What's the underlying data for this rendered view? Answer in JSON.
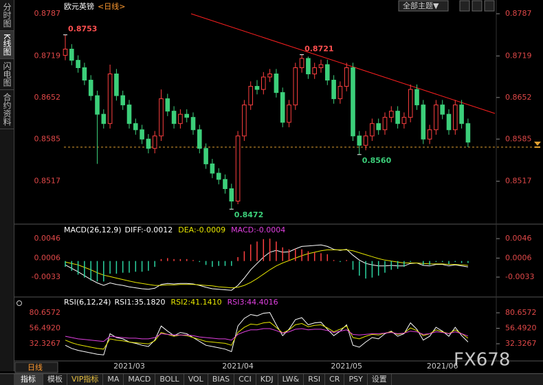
{
  "header": {
    "title": "欧元英镑",
    "period": "<日线>",
    "theme_button": "全部主题▼"
  },
  "sidebar": [
    "分时图",
    "K线图",
    "闪电图",
    "合约资料"
  ],
  "period_button": "日线",
  "watermark": "FX678",
  "toolbar": [
    "指标",
    "模板",
    "VIP指标",
    "MA",
    "MACD",
    "BOLL",
    "VOL",
    "BIAS",
    "CCI",
    "KDJ",
    "LW&",
    "RSI",
    "CR",
    "PSY",
    "设置"
  ],
  "chart_data": [
    {
      "type": "candlestick",
      "up_color": "#ff4040",
      "down_color": "#3ccf7a",
      "categories": [
        null,
        null,
        null,
        null,
        null,
        null,
        null,
        null,
        null,
        null,
        "2021/03",
        null,
        null,
        null,
        null,
        null,
        null,
        null,
        null,
        null,
        null,
        null,
        null,
        null,
        null,
        null,
        null,
        "2021/04",
        null,
        null,
        null,
        null,
        null,
        null,
        null,
        null,
        null,
        null,
        null,
        null,
        null,
        null,
        null,
        null,
        "2021/05",
        null,
        null,
        null,
        null,
        null,
        null,
        null,
        null,
        null,
        null,
        null,
        null,
        null,
        null,
        "2021/06",
        null,
        null,
        null,
        null
      ],
      "open": [
        0.872,
        0.873,
        0.8712,
        0.87,
        0.868,
        0.8655,
        0.8625,
        0.861,
        0.869,
        0.8655,
        0.864,
        0.861,
        0.86,
        0.8585,
        0.857,
        0.859,
        0.865,
        0.863,
        0.861,
        0.8625,
        0.862,
        0.86,
        0.857,
        0.8545,
        0.853,
        0.852,
        0.8505,
        0.8485,
        0.859,
        0.864,
        0.867,
        0.8665,
        0.8685,
        0.869,
        0.866,
        0.8612,
        0.864,
        0.87,
        0.8715,
        0.869,
        0.87,
        0.8705,
        0.868,
        0.865,
        0.867,
        0.87,
        0.859,
        0.8575,
        0.859,
        0.861,
        0.86,
        0.862,
        0.863,
        0.861,
        0.862,
        0.8665,
        0.864,
        0.8585,
        0.86,
        0.864,
        0.8625,
        0.86,
        0.864,
        0.861
      ],
      "high": [
        0.8753,
        0.8738,
        0.872,
        0.8708,
        0.8688,
        0.8663,
        0.8633,
        0.8705,
        0.8698,
        0.8663,
        0.8648,
        0.8618,
        0.8608,
        0.8593,
        0.8598,
        0.8665,
        0.8658,
        0.8638,
        0.8633,
        0.8633,
        0.8628,
        0.8608,
        0.8578,
        0.8553,
        0.8538,
        0.8528,
        0.8513,
        0.8598,
        0.8648,
        0.8678,
        0.868,
        0.8693,
        0.8698,
        0.8698,
        0.8668,
        0.8648,
        0.8708,
        0.8721,
        0.8718,
        0.8708,
        0.8713,
        0.8713,
        0.8688,
        0.8678,
        0.8708,
        0.8708,
        0.8598,
        0.8598,
        0.8618,
        0.8618,
        0.8628,
        0.8638,
        0.8638,
        0.8628,
        0.8673,
        0.8673,
        0.8648,
        0.8608,
        0.8648,
        0.8648,
        0.8633,
        0.8648,
        0.8648,
        0.8618
      ],
      "low": [
        0.8712,
        0.8704,
        0.8692,
        0.8672,
        0.8647,
        0.8545,
        0.8602,
        0.8602,
        0.8647,
        0.8632,
        0.8602,
        0.8592,
        0.8577,
        0.8562,
        0.8562,
        0.8582,
        0.8622,
        0.8602,
        0.8602,
        0.8612,
        0.8592,
        0.8562,
        0.8537,
        0.8522,
        0.8512,
        0.8497,
        0.8472,
        0.848,
        0.8582,
        0.8632,
        0.8657,
        0.8657,
        0.8677,
        0.8652,
        0.8604,
        0.8604,
        0.8632,
        0.8692,
        0.8682,
        0.8682,
        0.8692,
        0.8672,
        0.8642,
        0.8642,
        0.8662,
        0.8582,
        0.856,
        0.8567,
        0.8582,
        0.8592,
        0.8592,
        0.8612,
        0.8602,
        0.8602,
        0.8612,
        0.8632,
        0.8577,
        0.8577,
        0.8592,
        0.8617,
        0.8592,
        0.8592,
        0.8602,
        0.8572
      ],
      "close": [
        0.873,
        0.8712,
        0.87,
        0.868,
        0.8655,
        0.8625,
        0.861,
        0.869,
        0.8655,
        0.864,
        0.861,
        0.86,
        0.8585,
        0.857,
        0.859,
        0.865,
        0.863,
        0.861,
        0.8625,
        0.862,
        0.86,
        0.857,
        0.8545,
        0.853,
        0.852,
        0.8505,
        0.8485,
        0.859,
        0.864,
        0.867,
        0.8665,
        0.8685,
        0.869,
        0.866,
        0.8612,
        0.864,
        0.87,
        0.8715,
        0.869,
        0.87,
        0.8705,
        0.868,
        0.865,
        0.867,
        0.87,
        0.859,
        0.8575,
        0.859,
        0.861,
        0.86,
        0.862,
        0.863,
        0.861,
        0.862,
        0.8665,
        0.864,
        0.8585,
        0.86,
        0.864,
        0.8625,
        0.86,
        0.864,
        0.861,
        0.858
      ],
      "annotations": [
        0.8753,
        0.8721,
        {
          "value": 0.856,
          "label": "0.8560"
        },
        0.8472
      ],
      "ylim": [
        0.8449,
        0.8787
      ],
      "yticks": [
        0.8517,
        0.8585,
        0.8652,
        0.8719,
        0.8787
      ]
    },
    {
      "type": "macd",
      "title": "MACD(26,12,9)",
      "series": [
        {
          "name": "DIFF:-0.0012",
          "color": "#ffffff",
          "style": "line",
          "values": [
            -0.0008,
            -0.0015,
            -0.0022,
            -0.003,
            -0.0038,
            -0.0045,
            -0.005,
            -0.0045,
            -0.0048,
            -0.005,
            -0.0053,
            -0.0055,
            -0.0057,
            -0.0058,
            -0.0056,
            -0.0048,
            -0.0046,
            -0.0047,
            -0.0046,
            -0.0046,
            -0.0047,
            -0.005,
            -0.0054,
            -0.0057,
            -0.0058,
            -0.0059,
            -0.006,
            -0.005,
            -0.0035,
            -0.0018,
            -0.0005,
            0.0008,
            0.0018,
            0.0022,
            0.0018,
            0.0019,
            0.0025,
            0.003,
            0.0031,
            0.0032,
            0.0033,
            0.003,
            0.0024,
            0.0022,
            0.0024,
            0.0012,
            0.0002,
            -0.0005,
            -0.0008,
            -0.001,
            -0.001,
            -0.0009,
            -0.001,
            -0.001,
            -0.0005,
            -0.0004,
            -0.0009,
            -0.001,
            -0.0007,
            -0.0007,
            -0.001,
            -0.0008,
            -0.001,
            -0.0012
          ]
        },
        {
          "name": "DEA:-0.0009",
          "color": "#e6e600",
          "style": "line",
          "values": [
            -0.0002,
            -0.0005,
            -0.0008,
            -0.0013,
            -0.0018,
            -0.0024,
            -0.0029,
            -0.0032,
            -0.0035,
            -0.0038,
            -0.0041,
            -0.0044,
            -0.0046,
            -0.0048,
            -0.005,
            -0.005,
            -0.0049,
            -0.0049,
            -0.0048,
            -0.0048,
            -0.0048,
            -0.0049,
            -0.005,
            -0.0051,
            -0.0053,
            -0.0054,
            -0.0055,
            -0.0054,
            -0.005,
            -0.0044,
            -0.0036,
            -0.0027,
            -0.0018,
            -0.001,
            -0.0004,
            0.0001,
            0.0006,
            0.0011,
            0.0015,
            0.0018,
            0.0021,
            0.0023,
            0.0023,
            0.0023,
            0.0023,
            0.0021,
            0.0017,
            0.0013,
            0.0009,
            0.0005,
            0.0002,
            0,
            -0.0002,
            -0.0004,
            -0.0004,
            -0.0004,
            -0.0005,
            -0.0006,
            -0.0006,
            -0.0006,
            -0.0007,
            -0.0007,
            -0.0008,
            -0.0009
          ]
        },
        {
          "name": "MACD:-0.0004",
          "color": "#e040e0",
          "style": "bar",
          "up_color": "#ff4040",
          "down_color": "#2bd4a0",
          "values": [
            -0.0012,
            -0.002,
            -0.0028,
            -0.0034,
            -0.004,
            -0.0042,
            -0.0042,
            -0.0026,
            -0.0026,
            -0.0024,
            -0.0024,
            -0.0022,
            -0.0022,
            -0.002,
            -0.0012,
            0.0004,
            0.0006,
            0.0004,
            0.0004,
            0.0004,
            0.0002,
            -0.0002,
            -0.0008,
            -0.0012,
            -0.001,
            -0.001,
            -0.001,
            0.0008,
            0.002,
            0.0034,
            0.004,
            0.0045,
            0.0046,
            0.004,
            0.0028,
            0.0024,
            0.0025,
            0.0024,
            0.002,
            0.0018,
            0.0016,
            0.0014,
            0.0002,
            -0.0002,
            0.0002,
            -0.0018,
            -0.003,
            -0.0036,
            -0.0034,
            -0.003,
            -0.0024,
            -0.0018,
            -0.0016,
            -0.0012,
            -0.0002,
            0,
            -0.0008,
            -0.0008,
            -0.0002,
            -0.0002,
            -0.0006,
            -0.0002,
            -0.0004,
            -0.0004
          ]
        }
      ],
      "ylim": [
        -0.0064,
        0.0056
      ],
      "yticks": [
        -0.0033,
        0.0006,
        0.0046
      ]
    },
    {
      "type": "line",
      "title": "RSI(6,12,24)",
      "series": [
        {
          "name": "RSI1:35.1820",
          "color": "#ffffff",
          "values": [
            30,
            25,
            22,
            20,
            18,
            16,
            15,
            48,
            42,
            40,
            35,
            33,
            30,
            28,
            38,
            60,
            52,
            45,
            50,
            48,
            42,
            36,
            30,
            28,
            26,
            24,
            20,
            60,
            72,
            78,
            76,
            80,
            81,
            62,
            45,
            55,
            70,
            73,
            62,
            65,
            66,
            55,
            45,
            52,
            62,
            30,
            27,
            35,
            42,
            40,
            48,
            52,
            44,
            48,
            65,
            55,
            38,
            44,
            58,
            52,
            44,
            58,
            45,
            35.182
          ]
        },
        {
          "name": "RSI2:41.1410",
          "color": "#e6e600",
          "values": [
            38,
            34,
            31,
            29,
            27,
            25,
            24,
            40,
            38,
            37,
            35,
            34,
            33,
            32,
            37,
            50,
            47,
            44,
            46,
            45,
            42,
            39,
            36,
            35,
            34,
            33,
            30,
            50,
            58,
            63,
            62,
            65,
            66,
            58,
            49,
            54,
            62,
            64,
            59,
            61,
            62,
            57,
            51,
            55,
            60,
            42,
            40,
            44,
            47,
            46,
            49,
            51,
            47,
            49,
            57,
            53,
            45,
            48,
            54,
            51,
            48,
            54,
            48,
            41.141
          ]
        },
        {
          "name": "RSI3:44.4016",
          "color": "#e040e0",
          "values": [
            44,
            42,
            40,
            39,
            38,
            37,
            36,
            44,
            43,
            42,
            41,
            41,
            40,
            40,
            42,
            48,
            47,
            46,
            46,
            46,
            45,
            43,
            42,
            41,
            40,
            40,
            38,
            47,
            51,
            54,
            54,
            56,
            56,
            53,
            49,
            51,
            55,
            56,
            54,
            55,
            55,
            53,
            50,
            52,
            54,
            47,
            46,
            47,
            48,
            48,
            49,
            50,
            48,
            49,
            52,
            51,
            47,
            48,
            51,
            50,
            48,
            51,
            48,
            44.4016
          ]
        }
      ],
      "ylim": [
        5.5,
        91.4
      ],
      "yticks": [
        32.3267,
        {
          "value": 56.492,
          "label": "56.4920"
        },
        80.6572
      ]
    }
  ]
}
